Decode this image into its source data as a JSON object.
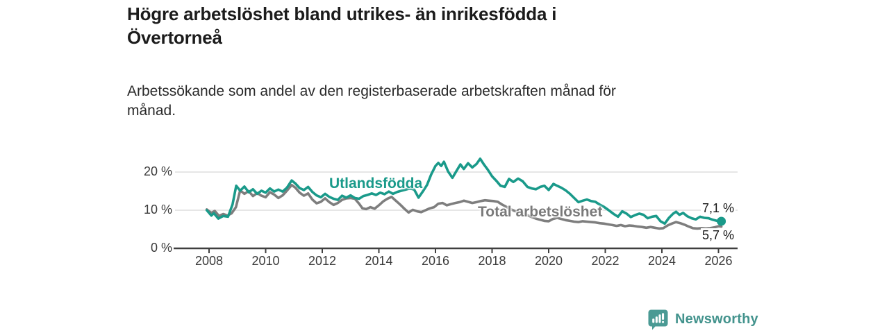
{
  "header": {
    "title_line1": "Högre arbetslöshet bland utrikes- än inrikesfödda i",
    "title_line2": "Övertorneå",
    "subtitle_line1": "Arbetssökande som andel av den registerbaserade arbetskraften månad för",
    "subtitle_line2": "månad."
  },
  "colors": {
    "accent_teal": "#1a9a8a",
    "line_gray": "#7e7e7e",
    "label_gray": "#7a7a7a",
    "grid": "#d8d8d8",
    "axis": "#3f3f3f",
    "brand_teal": "#43938d",
    "text_dark": "#1c1c1c"
  },
  "footer": {
    "brand": "Newsworthy",
    "logo_icon": "bar-chart-speech-bubble"
  },
  "chart_data": {
    "type": "line",
    "title": "Högre arbetslöshet bland utrikes- än inrikesfödda i Övertorneå",
    "subtitle": "Arbetssökande som andel av den registerbaserade arbetskraften månad för månad.",
    "xlabel": "",
    "ylabel": "",
    "x_unit": "year (monthly data)",
    "y_unit": "%",
    "xlim": [
      2007.85,
      2026.75
    ],
    "ylim": [
      0,
      25
    ],
    "grid": "horizontal",
    "legend_position": "inline-labels",
    "x_ticks": [
      2008,
      2010,
      2012,
      2014,
      2016,
      2018,
      2020,
      2022,
      2024,
      2026
    ],
    "y_tick_values": [
      0,
      10,
      20
    ],
    "y_tick_labels": [
      "0 %",
      "10 %",
      "20 %"
    ],
    "series": [
      {
        "id": "utlandsfodda",
        "name": "Utlandsfödda",
        "color": "#1a9a8a",
        "end_label": "7,1 %",
        "end_value": 7.1,
        "end_dot": true,
        "x": [
          2007.92,
          2008.08,
          2008.17,
          2008.33,
          2008.5,
          2008.67,
          2008.83,
          2008.96,
          2009.1,
          2009.25,
          2009.4,
          2009.55,
          2009.7,
          2009.85,
          2010.0,
          2010.15,
          2010.3,
          2010.45,
          2010.6,
          2010.75,
          2010.92,
          2011.05,
          2011.2,
          2011.35,
          2011.5,
          2011.65,
          2011.8,
          2011.95,
          2012.1,
          2012.25,
          2012.4,
          2012.55,
          2012.7,
          2012.85,
          2013.0,
          2013.15,
          2013.3,
          2013.45,
          2013.6,
          2013.75,
          2013.9,
          2014.05,
          2014.2,
          2014.35,
          2014.5,
          2014.65,
          2014.8,
          2014.95,
          2015.1,
          2015.25,
          2015.4,
          2015.55,
          2015.7,
          2015.85,
          2016.0,
          2016.1,
          2016.2,
          2016.3,
          2016.45,
          2016.6,
          2016.75,
          2016.88,
          2017.0,
          2017.15,
          2017.3,
          2017.45,
          2017.58,
          2017.7,
          2017.85,
          2018.0,
          2018.15,
          2018.3,
          2018.45,
          2018.6,
          2018.75,
          2018.92,
          2019.08,
          2019.25,
          2019.4,
          2019.55,
          2019.7,
          2019.85,
          2020.0,
          2020.17,
          2020.3,
          2020.45,
          2020.6,
          2020.75,
          2020.9,
          2021.05,
          2021.2,
          2021.35,
          2021.5,
          2021.65,
          2021.8,
          2021.95,
          2022.1,
          2022.3,
          2022.45,
          2022.6,
          2022.75,
          2022.9,
          2023.05,
          2023.2,
          2023.35,
          2023.5,
          2023.65,
          2023.8,
          2023.95,
          2024.1,
          2024.25,
          2024.4,
          2024.5,
          2024.62,
          2024.75,
          2024.9,
          2025.05,
          2025.2,
          2025.35,
          2025.5,
          2025.65,
          2025.8,
          2025.95,
          2026.1
        ],
        "values": [
          10.0,
          8.6,
          9.2,
          7.8,
          8.5,
          8.3,
          11.5,
          16.4,
          15.1,
          16.2,
          14.7,
          15.5,
          14.3,
          15.1,
          14.6,
          15.7,
          14.9,
          15.4,
          14.9,
          15.9,
          17.8,
          17.0,
          15.8,
          15.3,
          16.1,
          14.8,
          13.9,
          13.4,
          14.3,
          13.5,
          13.0,
          12.7,
          13.8,
          13.3,
          13.9,
          13.2,
          13.0,
          13.7,
          14.0,
          14.4,
          14.0,
          14.6,
          14.2,
          14.9,
          14.3,
          14.8,
          15.1,
          15.4,
          15.7,
          15.4,
          13.3,
          14.9,
          16.6,
          19.4,
          21.6,
          22.4,
          21.6,
          22.7,
          20.1,
          18.5,
          20.4,
          22.0,
          20.8,
          22.3,
          21.2,
          22.1,
          23.5,
          22.1,
          20.6,
          18.9,
          17.7,
          16.4,
          16.1,
          18.2,
          17.4,
          18.3,
          17.6,
          16.1,
          15.7,
          15.5,
          16.1,
          16.4,
          15.3,
          16.9,
          16.4,
          15.9,
          15.2,
          14.3,
          13.2,
          12.1,
          12.5,
          12.8,
          12.4,
          12.2,
          11.5,
          10.9,
          10.1,
          9.0,
          8.3,
          9.7,
          9.1,
          8.2,
          8.7,
          9.1,
          8.8,
          7.9,
          8.3,
          8.5,
          7.1,
          6.5,
          8.0,
          9.1,
          9.6,
          8.8,
          9.3,
          8.4,
          7.9,
          7.6,
          8.3,
          8.0,
          7.9,
          7.5,
          7.2,
          7.1
        ]
      },
      {
        "id": "total",
        "name": "Total arbetslöshet",
        "color": "#7e7e7e",
        "end_label": "5,7 %",
        "end_value": 5.7,
        "end_dot": false,
        "x": [
          2007.92,
          2008.08,
          2008.2,
          2008.35,
          2008.5,
          2008.65,
          2008.8,
          2008.95,
          2009.1,
          2009.25,
          2009.4,
          2009.55,
          2009.7,
          2009.85,
          2010.0,
          2010.15,
          2010.3,
          2010.45,
          2010.6,
          2010.75,
          2010.92,
          2011.05,
          2011.2,
          2011.35,
          2011.5,
          2011.65,
          2011.8,
          2011.95,
          2012.1,
          2012.25,
          2012.4,
          2012.55,
          2012.7,
          2012.85,
          2013.0,
          2013.15,
          2013.3,
          2013.42,
          2013.55,
          2013.7,
          2013.85,
          2014.0,
          2014.15,
          2014.3,
          2014.45,
          2014.6,
          2014.75,
          2014.9,
          2015.05,
          2015.2,
          2015.35,
          2015.5,
          2015.65,
          2015.8,
          2015.95,
          2016.1,
          2016.25,
          2016.4,
          2016.55,
          2016.7,
          2016.85,
          2017.0,
          2017.15,
          2017.3,
          2017.45,
          2017.6,
          2017.75,
          2017.9,
          2018.05,
          2018.2,
          2018.35,
          2018.5,
          2018.65,
          2018.8,
          2018.95,
          2019.1,
          2019.25,
          2019.4,
          2019.55,
          2019.7,
          2019.85,
          2020.0,
          2020.15,
          2020.3,
          2020.45,
          2020.6,
          2020.75,
          2020.9,
          2021.05,
          2021.2,
          2021.35,
          2021.5,
          2021.65,
          2021.8,
          2021.95,
          2022.1,
          2022.25,
          2022.4,
          2022.55,
          2022.7,
          2022.85,
          2023.0,
          2023.15,
          2023.3,
          2023.45,
          2023.6,
          2023.75,
          2023.9,
          2024.05,
          2024.2,
          2024.35,
          2024.5,
          2024.65,
          2024.8,
          2024.95,
          2025.1,
          2025.25,
          2025.4,
          2025.55,
          2025.7,
          2025.85,
          2026.0,
          2026.1
        ],
        "values": [
          10.2,
          9.3,
          9.8,
          8.5,
          9.0,
          8.6,
          9.2,
          10.8,
          15.2,
          14.3,
          15.0,
          13.7,
          14.5,
          13.8,
          13.4,
          14.7,
          14.1,
          13.2,
          13.9,
          15.1,
          16.6,
          15.9,
          14.6,
          13.8,
          14.4,
          12.8,
          11.8,
          12.2,
          13.1,
          12.1,
          11.4,
          11.9,
          12.7,
          13.1,
          13.2,
          13.0,
          11.7,
          10.5,
          10.3,
          10.8,
          10.4,
          11.3,
          12.3,
          13.0,
          13.5,
          12.5,
          11.5,
          10.4,
          9.4,
          10.1,
          9.7,
          9.5,
          10.0,
          10.5,
          10.8,
          11.7,
          11.9,
          11.3,
          11.6,
          11.9,
          12.1,
          12.5,
          12.2,
          11.9,
          12.1,
          12.4,
          12.6,
          12.5,
          12.4,
          12.2,
          11.5,
          10.9,
          10.3,
          9.8,
          9.5,
          9.1,
          8.7,
          8.2,
          7.8,
          7.5,
          7.2,
          7.1,
          7.7,
          8.0,
          7.7,
          7.4,
          7.2,
          7.0,
          6.9,
          7.1,
          7.0,
          6.9,
          6.8,
          6.6,
          6.5,
          6.3,
          6.1,
          5.9,
          6.1,
          5.8,
          6.0,
          5.9,
          5.7,
          5.6,
          5.4,
          5.6,
          5.4,
          5.2,
          5.3,
          6.0,
          6.5,
          6.9,
          6.6,
          6.2,
          5.7,
          5.3,
          5.2,
          5.3,
          5.2,
          5.3,
          5.5,
          5.8,
          5.7
        ]
      }
    ]
  }
}
